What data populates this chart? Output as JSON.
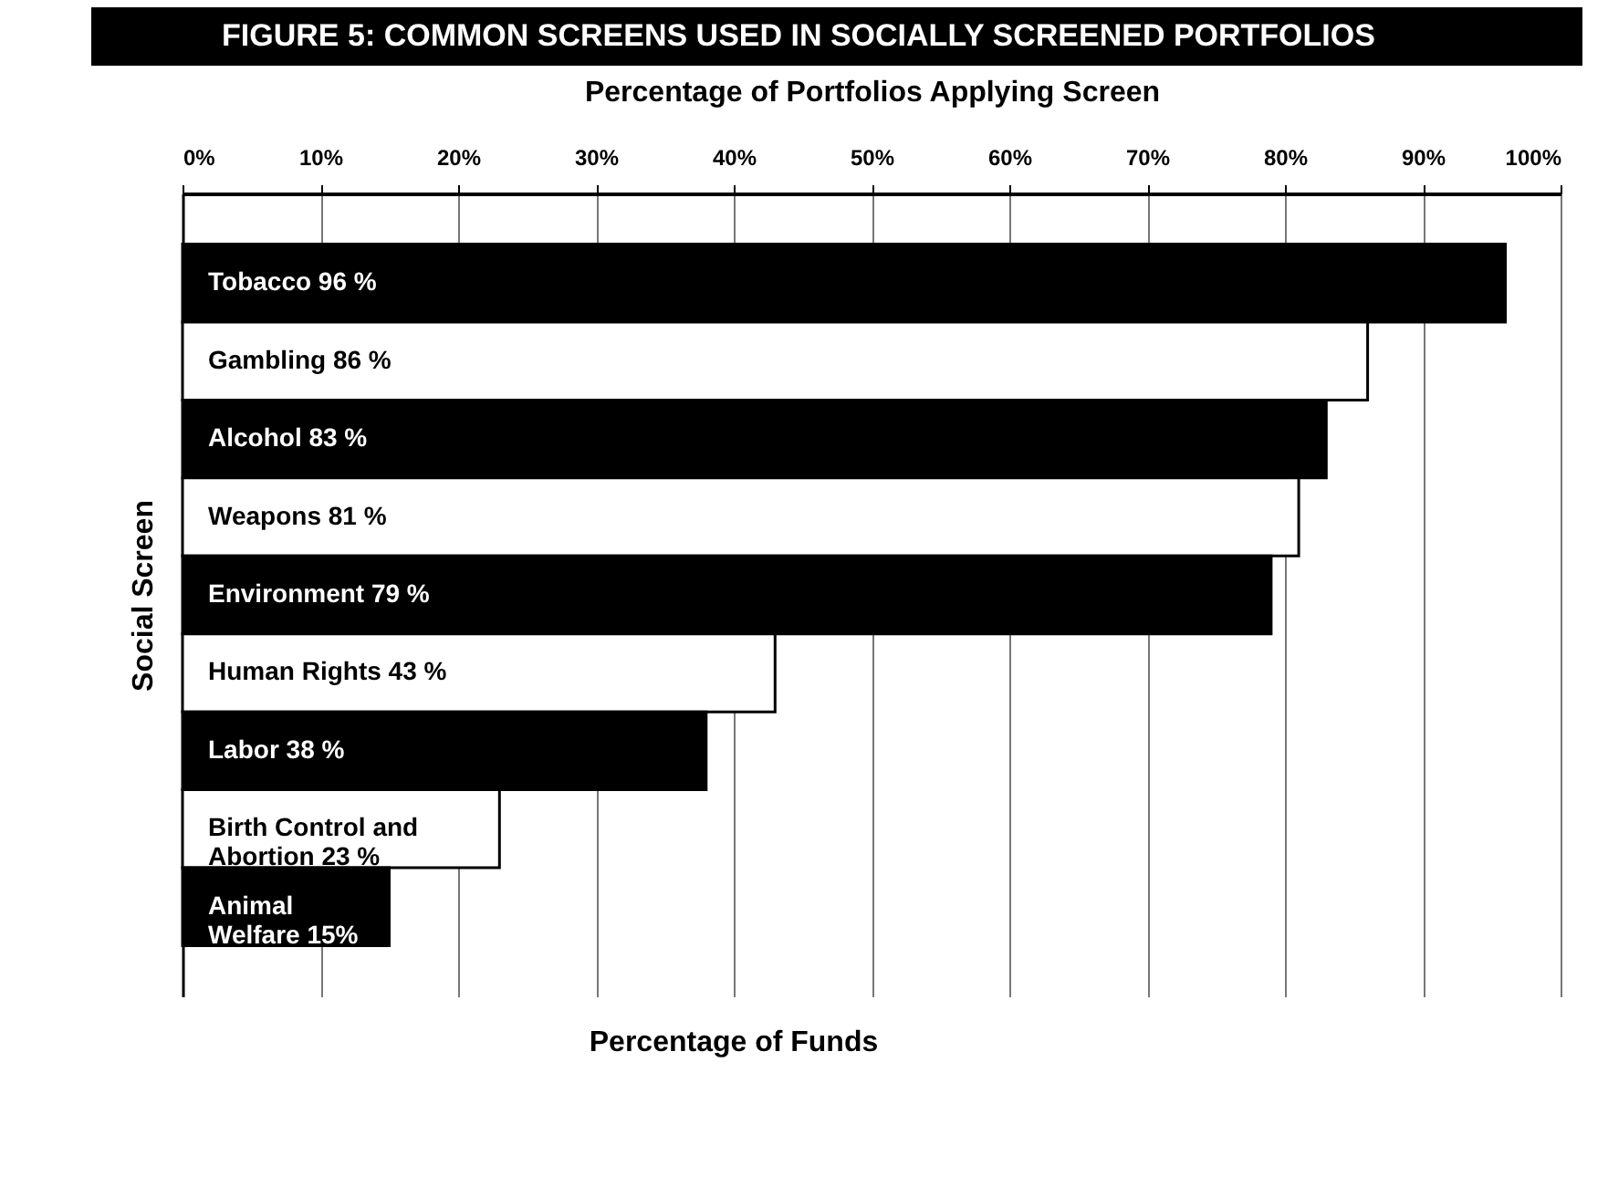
{
  "chart_data": {
    "type": "bar",
    "orientation": "horizontal",
    "title": "FIGURE 5: COMMON SCREENS USED IN SOCIALLY SCREENED PORTFOLIOS",
    "xlabel": "Percentage of Portfolios Applying Screen",
    "ylabel": "Social Screen",
    "annotations": [
      "Percentage of Funds"
    ],
    "categories": [
      "Tobacco 96 %",
      "Gambling 86  %",
      "Alcohol 83 %",
      "Weapons 81 %",
      "Environment 79 %",
      "Human Rights 43 %",
      "Labor 38 %",
      "Birth Control and\nAbortion 23 %",
      "Animal\nWelfare 15%"
    ],
    "values": [
      96,
      86,
      83,
      81,
      79,
      43,
      38,
      23,
      15
    ],
    "colors": [
      "#000000",
      "#ffffff",
      "#000000",
      "#ffffff",
      "#000000",
      "#ffffff",
      "#000000",
      "#ffffff",
      "#000000"
    ],
    "xlim": [
      0,
      100
    ],
    "xticks": [
      {
        "value": 0,
        "label": "0%"
      },
      {
        "value": 10,
        "label": "10%"
      },
      {
        "value": 20,
        "label": "20%"
      },
      {
        "value": 30,
        "label": "30%"
      },
      {
        "value": 40,
        "label": "40%"
      },
      {
        "value": 50,
        "label": "50%"
      },
      {
        "value": 60,
        "label": "60%"
      },
      {
        "value": 70,
        "label": "70%"
      },
      {
        "value": 80,
        "label": "80%"
      },
      {
        "value": 90,
        "label": "90%"
      },
      {
        "value": 100,
        "label": "100%"
      }
    ],
    "grid": "x"
  }
}
